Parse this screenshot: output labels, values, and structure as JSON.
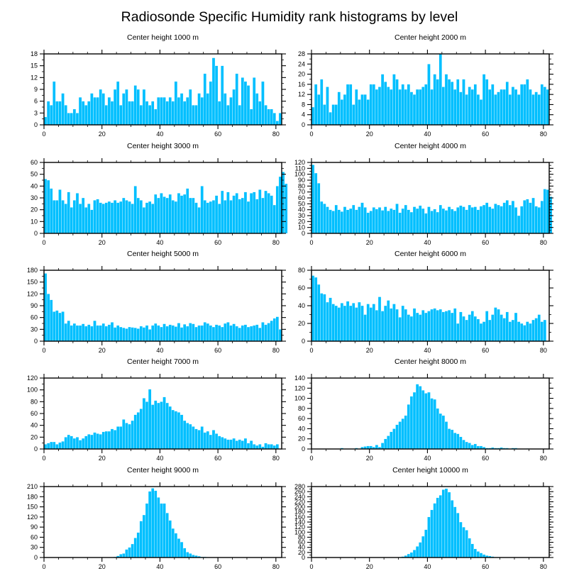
{
  "title": "Radiosonde Specific Humidity rank histograms by level",
  "colors": {
    "bar": "#00BFFF",
    "bar_edge": "#ffffff",
    "axis": "#000000"
  },
  "chart_data": [
    {
      "type": "bar",
      "title": "Center height 1000 m",
      "xlabel": "",
      "ylabel": "",
      "xlim": [
        0,
        82
      ],
      "ylim": [
        0,
        18
      ],
      "xticks": [
        0,
        20,
        40,
        60,
        80
      ],
      "yticks": [
        0,
        3,
        6,
        9,
        12,
        15,
        18
      ],
      "values": [
        2,
        6,
        5,
        11,
        6,
        6,
        8,
        5,
        3,
        3,
        4,
        3,
        7,
        6,
        5,
        6,
        8,
        7,
        7,
        9,
        8,
        5,
        7,
        6,
        9,
        11,
        5,
        8,
        9,
        6,
        6,
        10,
        9,
        5,
        9,
        6,
        5,
        6,
        4,
        7,
        7,
        7,
        6,
        7,
        6,
        11,
        7,
        8,
        6,
        7,
        9,
        5,
        5,
        8,
        7,
        13,
        8,
        11,
        17,
        15,
        6,
        15,
        8,
        5,
        7,
        9,
        13,
        5,
        12,
        11,
        10,
        4,
        12,
        8,
        6,
        11,
        5,
        4,
        4,
        3,
        1,
        3
      ]
    },
    {
      "type": "bar",
      "title": "Center height 2000 m",
      "xlabel": "",
      "ylabel": "",
      "xlim": [
        0,
        82
      ],
      "ylim": [
        0,
        28
      ],
      "xticks": [
        0,
        20,
        40,
        60,
        80
      ],
      "yticks": [
        0,
        4,
        8,
        12,
        16,
        20,
        24,
        28
      ],
      "values": [
        7,
        16,
        12,
        18,
        8,
        15,
        5,
        8,
        8,
        13,
        10,
        12,
        16,
        16,
        8,
        14,
        10,
        12,
        12,
        10,
        16,
        16,
        14,
        15,
        20,
        17,
        15,
        14,
        20,
        18,
        14,
        16,
        14,
        16,
        13,
        12,
        14,
        14,
        15,
        16,
        24,
        14,
        20,
        18,
        28,
        15,
        20,
        18,
        17,
        14,
        18,
        13,
        18,
        12,
        15,
        14,
        16,
        12,
        10,
        20,
        18,
        14,
        16,
        12,
        13,
        14,
        14,
        17,
        12,
        15,
        14,
        12,
        16,
        16,
        18,
        14,
        12,
        13,
        12,
        16,
        15,
        14
      ]
    },
    {
      "type": "bar",
      "title": "Center height 3000 m",
      "xlabel": "",
      "ylabel": "",
      "xlim": [
        0,
        82
      ],
      "ylim": [
        0,
        60
      ],
      "xticks": [
        0,
        20,
        40,
        60,
        80
      ],
      "yticks": [
        0,
        10,
        20,
        30,
        40,
        50,
        60
      ],
      "values": [
        46,
        45,
        38,
        28,
        28,
        37,
        28,
        25,
        35,
        22,
        28,
        34,
        25,
        30,
        22,
        25,
        20,
        28,
        29,
        26,
        25,
        26,
        27,
        26,
        28,
        26,
        27,
        30,
        28,
        27,
        25,
        40,
        30,
        28,
        22,
        26,
        27,
        25,
        33,
        30,
        34,
        31,
        30,
        33,
        28,
        27,
        34,
        32,
        33,
        38,
        30,
        30,
        26,
        22,
        40,
        28,
        26,
        27,
        28,
        32,
        25,
        36,
        28,
        35,
        28,
        32,
        34,
        29,
        30,
        35,
        27,
        34,
        35,
        29,
        37,
        30,
        36,
        34,
        32,
        24,
        40,
        48,
        52,
        42
      ]
    },
    {
      "type": "bar",
      "title": "Center height 4000 m",
      "xlabel": "",
      "ylabel": "",
      "xlim": [
        0,
        82
      ],
      "ylim": [
        0,
        120
      ],
      "xticks": [
        0,
        20,
        40,
        60,
        80
      ],
      "yticks": [
        0,
        10,
        20,
        30,
        40,
        50,
        60,
        70,
        80,
        90,
        100,
        110,
        120
      ],
      "values": [
        116,
        102,
        85,
        54,
        50,
        45,
        40,
        38,
        48,
        40,
        37,
        45,
        40,
        42,
        48,
        40,
        45,
        52,
        44,
        35,
        38,
        44,
        41,
        44,
        39,
        45,
        38,
        42,
        40,
        50,
        35,
        42,
        48,
        40,
        36,
        45,
        42,
        47,
        42,
        34,
        45,
        38,
        41,
        36,
        48,
        42,
        39,
        45,
        41,
        38,
        44,
        47,
        45,
        40,
        48,
        44,
        45,
        40,
        46,
        48,
        52,
        45,
        42,
        50,
        48,
        46,
        52,
        56,
        48,
        55,
        44,
        30,
        46,
        56,
        58,
        52,
        60,
        46,
        44,
        55,
        75,
        74,
        62
      ]
    },
    {
      "type": "bar",
      "title": "Center height 5000 m",
      "xlabel": "",
      "ylabel": "",
      "xlim": [
        0,
        82
      ],
      "ylim": [
        0,
        180
      ],
      "xticks": [
        0,
        20,
        40,
        60,
        80
      ],
      "yticks": [
        0,
        30,
        60,
        90,
        120,
        150,
        180
      ],
      "values": [
        172,
        120,
        105,
        75,
        78,
        72,
        75,
        45,
        52,
        40,
        45,
        40,
        40,
        44,
        38,
        42,
        38,
        52,
        40,
        40,
        45,
        38,
        42,
        48,
        35,
        40,
        36,
        34,
        32,
        36,
        35,
        34,
        32,
        38,
        35,
        40,
        30,
        40,
        45,
        40,
        36,
        44,
        38,
        42,
        40,
        37,
        46,
        35,
        43,
        38,
        46,
        44,
        36,
        40,
        40,
        48,
        45,
        40,
        36,
        42,
        40,
        36,
        45,
        48,
        40,
        44,
        38,
        34,
        40,
        42,
        36,
        38,
        40,
        42,
        34,
        48,
        42,
        46,
        52,
        58,
        62,
        30
      ]
    },
    {
      "type": "bar",
      "title": "Center height 6000 m",
      "xlabel": "",
      "ylabel": "",
      "xlim": [
        0,
        82
      ],
      "ylim": [
        0,
        80
      ],
      "xticks": [
        0,
        20,
        40,
        60,
        80
      ],
      "yticks": [
        0,
        20,
        40,
        60,
        80
      ],
      "values": [
        74,
        72,
        64,
        54,
        53,
        44,
        49,
        42,
        40,
        38,
        43,
        40,
        45,
        40,
        43,
        38,
        44,
        40,
        30,
        42,
        38,
        42,
        35,
        50,
        34,
        40,
        46,
        37,
        42,
        36,
        27,
        40,
        36,
        30,
        28,
        37,
        32,
        30,
        35,
        32,
        34,
        36,
        37,
        35,
        36,
        33,
        34,
        35,
        32,
        37,
        20,
        33,
        28,
        24,
        30,
        34,
        28,
        25,
        20,
        22,
        34,
        24,
        30,
        38,
        36,
        30,
        26,
        33,
        22,
        24,
        32,
        22,
        20,
        18,
        22,
        20,
        24,
        26,
        30,
        22,
        24
      ]
    },
    {
      "type": "bar",
      "title": "Center height 7000 m",
      "xlabel": "",
      "ylabel": "",
      "xlim": [
        0,
        82
      ],
      "ylim": [
        0,
        120
      ],
      "xticks": [
        0,
        20,
        40,
        60,
        80
      ],
      "yticks": [
        0,
        20,
        40,
        60,
        80,
        100,
        120
      ],
      "values": [
        8,
        10,
        12,
        12,
        8,
        11,
        13,
        20,
        24,
        22,
        18,
        20,
        15,
        18,
        22,
        25,
        24,
        28,
        26,
        25,
        29,
        30,
        30,
        34,
        32,
        38,
        38,
        50,
        44,
        42,
        48,
        58,
        62,
        68,
        86,
        80,
        101,
        75,
        82,
        78,
        80,
        88,
        78,
        72,
        66,
        64,
        62,
        58,
        48,
        44,
        42,
        38,
        34,
        32,
        38,
        28,
        30,
        24,
        32,
        26,
        22,
        20,
        18,
        16,
        16,
        18,
        14,
        16,
        14,
        18,
        10,
        14,
        8,
        6,
        8,
        4,
        10,
        8,
        8,
        6,
        8
      ]
    },
    {
      "type": "bar",
      "title": "Center height 8000 m",
      "xlabel": "",
      "ylabel": "",
      "xlim": [
        0,
        82
      ],
      "ylim": [
        0,
        140
      ],
      "xticks": [
        0,
        20,
        40,
        60,
        80
      ],
      "yticks": [
        0,
        20,
        40,
        60,
        80,
        100,
        120,
        140
      ],
      "values": [
        0,
        0,
        0,
        0,
        0,
        0,
        0,
        0,
        0,
        0,
        2,
        0,
        0,
        0,
        0,
        2,
        0,
        4,
        5,
        6,
        6,
        4,
        8,
        4,
        12,
        20,
        26,
        34,
        40,
        48,
        54,
        60,
        66,
        88,
        104,
        112,
        128,
        124,
        116,
        110,
        112,
        100,
        98,
        80,
        70,
        66,
        54,
        40,
        38,
        32,
        30,
        24,
        18,
        14,
        12,
        8,
        10,
        6,
        6,
        4,
        2,
        2,
        3,
        2,
        2,
        3,
        2,
        2,
        1,
        2,
        2,
        1,
        0,
        0,
        1,
        0,
        0,
        0,
        0,
        0,
        0
      ]
    },
    {
      "type": "bar",
      "title": "Center height 9000 m",
      "xlabel": "",
      "ylabel": "",
      "xlim": [
        0,
        82
      ],
      "ylim": [
        0,
        210
      ],
      "xticks": [
        0,
        20,
        40,
        60,
        80
      ],
      "yticks": [
        0,
        30,
        60,
        90,
        120,
        150,
        180,
        210
      ],
      "values": [
        0,
        0,
        0,
        0,
        0,
        0,
        0,
        0,
        0,
        0,
        0,
        0,
        0,
        0,
        0,
        0,
        0,
        0,
        0,
        0,
        0,
        0,
        0,
        0,
        2,
        5,
        10,
        12,
        24,
        30,
        40,
        58,
        74,
        108,
        126,
        160,
        196,
        205,
        198,
        178,
        160,
        160,
        132,
        110,
        86,
        72,
        56,
        46,
        28,
        16,
        12,
        8,
        6,
        4,
        2,
        2,
        0,
        0,
        0,
        0,
        0,
        0,
        0,
        0,
        0,
        0,
        0,
        0,
        0,
        0,
        0,
        0,
        0,
        0,
        0,
        0,
        0,
        0,
        0,
        0,
        0
      ]
    },
    {
      "type": "bar",
      "title": "Center height 10000 m",
      "xlabel": "",
      "ylabel": "",
      "xlim": [
        0,
        82
      ],
      "ylim": [
        0,
        280
      ],
      "xticks": [
        0,
        20,
        40,
        60,
        80
      ],
      "yticks": [
        0,
        20,
        40,
        60,
        80,
        100,
        120,
        140,
        160,
        180,
        200,
        220,
        240,
        260,
        280
      ],
      "values": [
        0,
        0,
        0,
        0,
        0,
        0,
        0,
        0,
        0,
        0,
        0,
        0,
        0,
        0,
        0,
        0,
        0,
        0,
        0,
        0,
        0,
        0,
        0,
        0,
        0,
        0,
        0,
        0,
        0,
        0,
        2,
        4,
        8,
        14,
        20,
        30,
        44,
        60,
        84,
        110,
        160,
        188,
        214,
        236,
        246,
        268,
        272,
        258,
        226,
        200,
        176,
        140,
        120,
        108,
        76,
        54,
        34,
        24,
        18,
        12,
        8,
        6,
        4,
        2,
        2,
        0,
        0,
        0,
        0,
        0,
        0,
        0,
        0,
        0,
        0,
        0,
        0,
        0,
        0,
        0,
        0
      ]
    }
  ]
}
